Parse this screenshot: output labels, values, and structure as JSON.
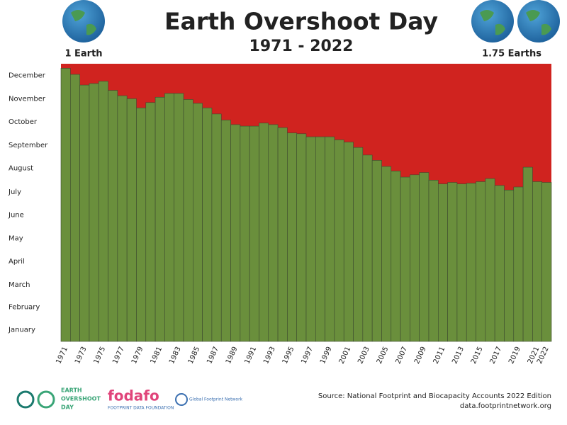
{
  "chart_data": {
    "type": "bar",
    "title": "Earth Overshoot Day",
    "subtitle": "1971 - 2022",
    "left_label": "1 Earth",
    "right_label": "1.75 Earths",
    "source": "Source: National Footprint and Biocapacity Accounts 2022 Edition",
    "source_url": "data.footprintnetwork.org",
    "logos": [
      "EARTH",
      "OVERSHOOT",
      "DAY",
      "fodafo",
      "FOOTPRINT DATA FOUNDATION",
      "Global Footprint Network"
    ],
    "color": "#6a8f3c",
    "remainder_color": "#d0231f",
    "categories": [
      "1971",
      null,
      "1973",
      null,
      "1975",
      null,
      "1977",
      null,
      "1979",
      null,
      "1981",
      null,
      "1983",
      null,
      "1985",
      null,
      "1987",
      null,
      "1989",
      null,
      "1991",
      null,
      "1993",
      null,
      "1995",
      null,
      "1997",
      null,
      "1999",
      null,
      "2001",
      null,
      "2003",
      null,
      "2005",
      null,
      "2007",
      null,
      "2009",
      null,
      "2011",
      null,
      "2013",
      null,
      "2015",
      null,
      "2017",
      null,
      "2019",
      null,
      "2021",
      "2022"
    ],
    "values": [
      359,
      351,
      337,
      339,
      342,
      330,
      323,
      319,
      307,
      314,
      321,
      326,
      326,
      318,
      313,
      307,
      299,
      291,
      285,
      283,
      283,
      287,
      285,
      281,
      274,
      273,
      269,
      269,
      269,
      265,
      262,
      255,
      245,
      238,
      230,
      224,
      216,
      219,
      222,
      212,
      207,
      209,
      207,
      208,
      210,
      214,
      205,
      199,
      203,
      229,
      210,
      209
    ],
    "ylim": [
      0,
      365
    ],
    "yticks": [
      {
        "value": 15.5,
        "label": "January"
      },
      {
        "value": 45,
        "label": "February"
      },
      {
        "value": 74.5,
        "label": "March"
      },
      {
        "value": 105,
        "label": "April"
      },
      {
        "value": 135.5,
        "label": "May"
      },
      {
        "value": 166,
        "label": "June"
      },
      {
        "value": 196.5,
        "label": "July"
      },
      {
        "value": 227.5,
        "label": "August"
      },
      {
        "value": 258,
        "label": "September"
      },
      {
        "value": 288.5,
        "label": "October"
      },
      {
        "value": 319,
        "label": "November"
      },
      {
        "value": 349.5,
        "label": "December"
      }
    ]
  }
}
